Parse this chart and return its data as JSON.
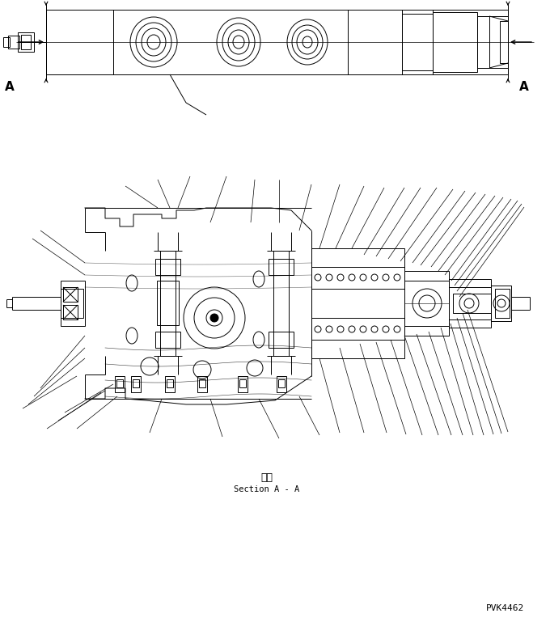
{
  "background_color": "#ffffff",
  "line_color": "#000000",
  "section_label_japanese": "断面",
  "section_label_english": "Section A - A",
  "part_number": "PVK4462",
  "fig_width": 6.8,
  "fig_height": 7.69,
  "dpi": 100
}
